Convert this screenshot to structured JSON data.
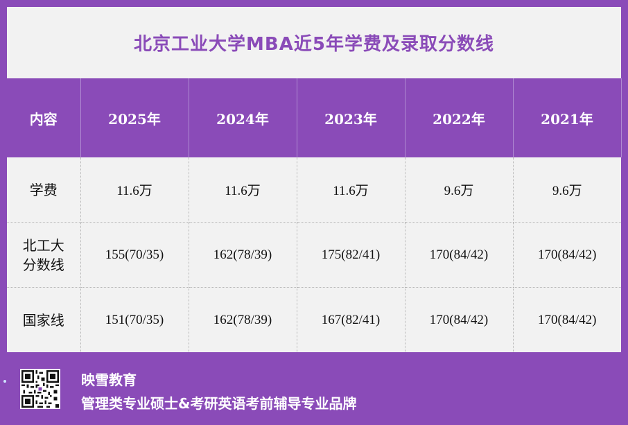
{
  "title": "北京工业大学MBA近5年学费及录取分数线",
  "table": {
    "headers": [
      "内容",
      "2025年",
      "2024年",
      "2023年",
      "2022年",
      "2021年"
    ],
    "rows": [
      {
        "label": "学费",
        "values": [
          "11.6万",
          "11.6万",
          "11.6万",
          "9.6万",
          "9.6万"
        ]
      },
      {
        "label": "北工大\n分数线",
        "values": [
          "155(70/35)",
          "162(78/39)",
          "175(82/41)",
          "170(84/42)",
          "170(84/42)"
        ]
      },
      {
        "label": "国家线",
        "values": [
          "151(70/35)",
          "162(78/39)",
          "167(82/41)",
          "170(84/42)",
          "170(84/42)"
        ]
      }
    ]
  },
  "footer": {
    "brand": "映雪教育",
    "slogan": "管理类专业硕士&考研英语考前辅导专业品牌",
    "qr_icon": "qr-code-icon"
  },
  "colors": {
    "accent": "#8a4bb8",
    "card": "#f2f2f2"
  }
}
